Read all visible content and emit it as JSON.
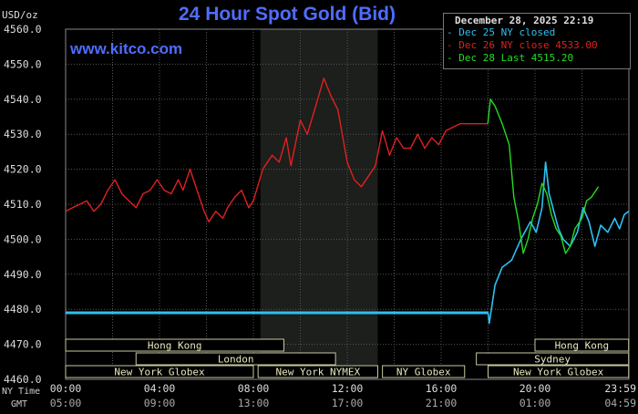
{
  "header": {
    "title": "24 Hour Spot Gold (Bid)",
    "units": "USD/oz",
    "site": "www.kitco.com"
  },
  "legend": {
    "date": "December 28, 2025 22:19",
    "entries": [
      {
        "symbol": "-",
        "text": "Dec 25 NY closed",
        "color": "#2ec0f0"
      },
      {
        "symbol": "-",
        "text": "Dec 26 NY close 4533.00",
        "color": "#e02020"
      },
      {
        "symbol": "-",
        "text": "Dec 28 Last 4515.20",
        "color": "#22dd22"
      }
    ]
  },
  "footer": {
    "ny_label": "NY Time",
    "gmt_label": "GMT",
    "ny_ticks": [
      "00:00",
      "04:00",
      "08:00",
      "12:00",
      "16:00",
      "20:00",
      "23:59"
    ],
    "gmt_ticks": [
      "05:00",
      "09:00",
      "13:00",
      "17:00",
      "21:00",
      "01:00",
      "04:59"
    ]
  },
  "markets": [
    {
      "name": "Hong Kong",
      "row": 0,
      "start": 0,
      "end": 9.3
    },
    {
      "name": "Hong Kong",
      "row": 0,
      "start": 20,
      "end": 23.99
    },
    {
      "name": "London",
      "row": 1,
      "start": 3,
      "end": 11.5
    },
    {
      "name": "Sydney",
      "row": 1,
      "start": 17.5,
      "end": 23.99
    },
    {
      "name": "New York Globex",
      "row": 2,
      "start": 0,
      "end": 8
    },
    {
      "name": "New York NYMEX",
      "row": 2,
      "start": 8.2,
      "end": 13.3
    },
    {
      "name": "NY Globex",
      "row": 2,
      "start": 13.5,
      "end": 17
    },
    {
      "name": "New York Globex",
      "row": 2,
      "start": 18,
      "end": 23.99
    }
  ],
  "chart_data": {
    "type": "line",
    "title": "24 Hour Spot Gold (Bid)",
    "ylabel": "USD/oz",
    "xlabel": "NY Time",
    "ylim": [
      4460,
      4560
    ],
    "xlim": [
      0,
      24
    ],
    "yticks": [
      "4460.0",
      "4470.0",
      "4480.0",
      "4490.0",
      "4500.0",
      "4510.0",
      "4520.0",
      "4530.0",
      "4540.0",
      "4550.0",
      "4560.0"
    ],
    "grid": true,
    "legend_position": "top-right",
    "shaded_ranges": [
      [
        8.3,
        13.3
      ]
    ],
    "series": [
      {
        "name": "Dec 25 NY closed",
        "color": "#2ec0f0",
        "points": [
          [
            0,
            4479
          ],
          [
            18,
            4479
          ],
          [
            18.05,
            4476
          ],
          [
            18.3,
            4487
          ],
          [
            18.6,
            4492
          ],
          [
            19,
            4494
          ],
          [
            19.4,
            4500
          ],
          [
            19.8,
            4505
          ],
          [
            20.05,
            4502
          ],
          [
            20.3,
            4509
          ],
          [
            20.45,
            4522
          ],
          [
            20.6,
            4513
          ],
          [
            20.8,
            4508
          ],
          [
            21,
            4503
          ],
          [
            21.2,
            4500
          ],
          [
            21.5,
            4498
          ],
          [
            21.8,
            4502
          ],
          [
            22.05,
            4509
          ],
          [
            22.3,
            4505
          ],
          [
            22.55,
            4498
          ],
          [
            22.8,
            4504
          ],
          [
            23.1,
            4502
          ],
          [
            23.4,
            4506
          ],
          [
            23.6,
            4503
          ],
          [
            23.8,
            4507
          ],
          [
            23.99,
            4508
          ]
        ]
      },
      {
        "name": "Dec 26 NY close 4533.00",
        "color": "#e02020",
        "points": [
          [
            0,
            4508
          ],
          [
            0.3,
            4509
          ],
          [
            0.6,
            4510
          ],
          [
            0.9,
            4511
          ],
          [
            1.2,
            4508
          ],
          [
            1.5,
            4510
          ],
          [
            1.8,
            4514
          ],
          [
            2.1,
            4517
          ],
          [
            2.4,
            4513
          ],
          [
            2.7,
            4511
          ],
          [
            3,
            4509
          ],
          [
            3.3,
            4513
          ],
          [
            3.6,
            4514
          ],
          [
            3.9,
            4517
          ],
          [
            4.2,
            4514
          ],
          [
            4.5,
            4513
          ],
          [
            4.8,
            4517
          ],
          [
            5,
            4514
          ],
          [
            5.3,
            4520
          ],
          [
            5.6,
            4514
          ],
          [
            5.9,
            4508
          ],
          [
            6.1,
            4505
          ],
          [
            6.4,
            4508
          ],
          [
            6.7,
            4506
          ],
          [
            6.9,
            4509
          ],
          [
            7.2,
            4512
          ],
          [
            7.5,
            4514
          ],
          [
            7.8,
            4509
          ],
          [
            8,
            4511
          ],
          [
            8.4,
            4520
          ],
          [
            8.8,
            4524
          ],
          [
            9.1,
            4522
          ],
          [
            9.4,
            4529
          ],
          [
            9.6,
            4521
          ],
          [
            10,
            4534
          ],
          [
            10.3,
            4530
          ],
          [
            10.7,
            4539
          ],
          [
            11,
            4546
          ],
          [
            11.3,
            4541
          ],
          [
            11.6,
            4537
          ],
          [
            12,
            4522
          ],
          [
            12.3,
            4517
          ],
          [
            12.6,
            4515
          ],
          [
            12.9,
            4518
          ],
          [
            13.2,
            4521
          ],
          [
            13.5,
            4531
          ],
          [
            13.8,
            4524
          ],
          [
            14.1,
            4529
          ],
          [
            14.4,
            4526
          ],
          [
            14.7,
            4526
          ],
          [
            15,
            4530
          ],
          [
            15.3,
            4526
          ],
          [
            15.6,
            4529
          ],
          [
            15.9,
            4527
          ],
          [
            16.2,
            4531
          ],
          [
            16.5,
            4532
          ],
          [
            16.8,
            4533
          ],
          [
            17,
            4533
          ],
          [
            17.5,
            4533
          ],
          [
            17.99,
            4533
          ]
        ]
      },
      {
        "name": "Dec 28 Last 4515.20",
        "color": "#22dd22",
        "points": [
          [
            17.99,
            4533
          ],
          [
            18.1,
            4540
          ],
          [
            18.3,
            4538
          ],
          [
            18.6,
            4533
          ],
          [
            18.9,
            4527
          ],
          [
            19.1,
            4512
          ],
          [
            19.3,
            4505
          ],
          [
            19.5,
            4496
          ],
          [
            19.7,
            4500
          ],
          [
            19.9,
            4506
          ],
          [
            20.1,
            4510
          ],
          [
            20.3,
            4516
          ],
          [
            20.5,
            4513
          ],
          [
            20.7,
            4507
          ],
          [
            20.9,
            4503
          ],
          [
            21.1,
            4501
          ],
          [
            21.3,
            4496
          ],
          [
            21.5,
            4498
          ],
          [
            21.7,
            4503
          ],
          [
            22,
            4506
          ],
          [
            22.2,
            4511
          ],
          [
            22.4,
            4512
          ],
          [
            22.6,
            4514
          ],
          [
            22.7,
            4515
          ]
        ]
      }
    ]
  }
}
